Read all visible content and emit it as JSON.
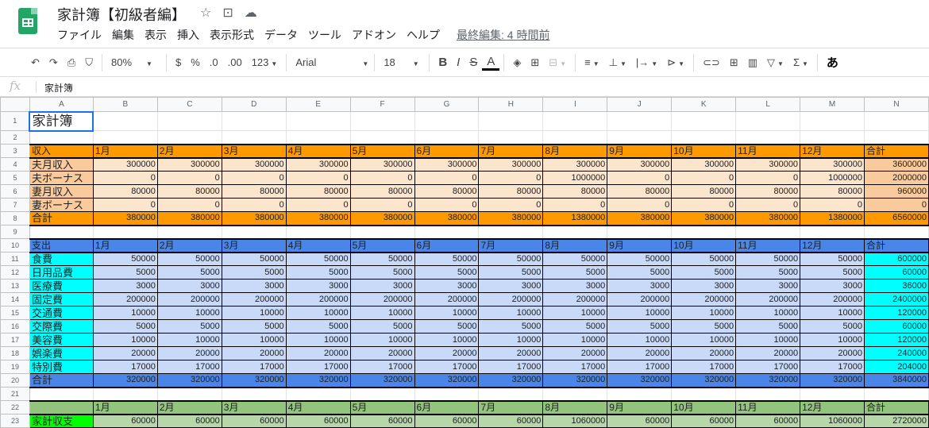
{
  "app": {
    "title": "家計簿【初級者編】",
    "last_edit": "最終編集: 4 時間前"
  },
  "menu": [
    "ファイル",
    "編集",
    "表示",
    "挿入",
    "表示形式",
    "データ",
    "ツール",
    "アドオン",
    "ヘルプ"
  ],
  "toolbar": {
    "zoom": "80%",
    "currency": "$",
    "percent": "%",
    "dec_less": ".0",
    "dec_more": ".00",
    "format": "123",
    "font": "Arial",
    "font_size": "18",
    "bold": "B",
    "italic": "I",
    "strike": "S",
    "text_color": "A",
    "input_tool": "あ"
  },
  "formula_bar": {
    "fx": "fx",
    "value": "家計簿"
  },
  "columns": [
    "A",
    "B",
    "C",
    "D",
    "E",
    "F",
    "G",
    "H",
    "I",
    "J",
    "K",
    "L",
    "M",
    "N"
  ],
  "a1": "家計簿",
  "months": [
    "1月",
    "2月",
    "3月",
    "4月",
    "5月",
    "6月",
    "7月",
    "8月",
    "9月",
    "10月",
    "11月",
    "12月",
    "合計"
  ],
  "income": {
    "header": "収入",
    "colors": {
      "header": "#ff9900",
      "label": "#f9cb9c",
      "cell": "#fce5cd",
      "total_col": "#f9cb9c"
    },
    "rows": [
      {
        "label": "夫月収入",
        "values": [
          300000,
          300000,
          300000,
          300000,
          300000,
          300000,
          300000,
          300000,
          300000,
          300000,
          300000,
          300000,
          3600000
        ]
      },
      {
        "label": "夫ボーナス",
        "values": [
          0,
          0,
          0,
          0,
          0,
          0,
          0,
          1000000,
          0,
          0,
          0,
          1000000,
          2000000
        ]
      },
      {
        "label": "妻月収入",
        "values": [
          80000,
          80000,
          80000,
          80000,
          80000,
          80000,
          80000,
          80000,
          80000,
          80000,
          80000,
          80000,
          960000
        ]
      },
      {
        "label": "妻ボーナス",
        "values": [
          0,
          0,
          0,
          0,
          0,
          0,
          0,
          0,
          0,
          0,
          0,
          0,
          0
        ]
      }
    ],
    "total": {
      "label": "合計",
      "values": [
        380000,
        380000,
        380000,
        380000,
        380000,
        380000,
        380000,
        1380000,
        380000,
        380000,
        380000,
        1380000,
        6560000
      ]
    }
  },
  "expense": {
    "header": "支出",
    "colors": {
      "header": "#4a86e8",
      "label": "#00ffff",
      "cell": "#c9daf8",
      "total_col": "#00ffff"
    },
    "rows": [
      {
        "label": "食費",
        "values": [
          50000,
          50000,
          50000,
          50000,
          50000,
          50000,
          50000,
          50000,
          50000,
          50000,
          50000,
          50000,
          600000
        ]
      },
      {
        "label": "日用品費",
        "values": [
          5000,
          5000,
          5000,
          5000,
          5000,
          5000,
          5000,
          5000,
          5000,
          5000,
          5000,
          5000,
          60000
        ]
      },
      {
        "label": "医療費",
        "values": [
          3000,
          3000,
          3000,
          3000,
          3000,
          3000,
          3000,
          3000,
          3000,
          3000,
          3000,
          3000,
          36000
        ]
      },
      {
        "label": "固定費",
        "values": [
          200000,
          200000,
          200000,
          200000,
          200000,
          200000,
          200000,
          200000,
          200000,
          200000,
          200000,
          200000,
          2400000
        ]
      },
      {
        "label": "交通費",
        "values": [
          10000,
          10000,
          10000,
          10000,
          10000,
          10000,
          10000,
          10000,
          10000,
          10000,
          10000,
          10000,
          120000
        ]
      },
      {
        "label": "交際費",
        "values": [
          5000,
          5000,
          5000,
          5000,
          5000,
          5000,
          5000,
          5000,
          5000,
          5000,
          5000,
          5000,
          60000
        ]
      },
      {
        "label": "美容費",
        "values": [
          10000,
          10000,
          10000,
          10000,
          10000,
          10000,
          10000,
          10000,
          10000,
          10000,
          10000,
          10000,
          120000
        ]
      },
      {
        "label": "娯楽費",
        "values": [
          20000,
          20000,
          20000,
          20000,
          20000,
          20000,
          20000,
          20000,
          20000,
          20000,
          20000,
          20000,
          240000
        ]
      },
      {
        "label": "特別費",
        "values": [
          17000,
          17000,
          17000,
          17000,
          17000,
          17000,
          17000,
          17000,
          17000,
          17000,
          17000,
          17000,
          204000
        ]
      }
    ],
    "total": {
      "label": "合計",
      "values": [
        320000,
        320000,
        320000,
        320000,
        320000,
        320000,
        320000,
        320000,
        320000,
        320000,
        320000,
        320000,
        3840000
      ]
    }
  },
  "balance": {
    "header": "",
    "colors": {
      "header": "#93c47d",
      "label": "#00ff00",
      "cell": "#b6d7a8"
    },
    "row": {
      "label": "家計収支",
      "values": [
        60000,
        60000,
        60000,
        60000,
        60000,
        60000,
        60000,
        1060000,
        60000,
        60000,
        60000,
        1060000,
        2720000
      ]
    }
  }
}
